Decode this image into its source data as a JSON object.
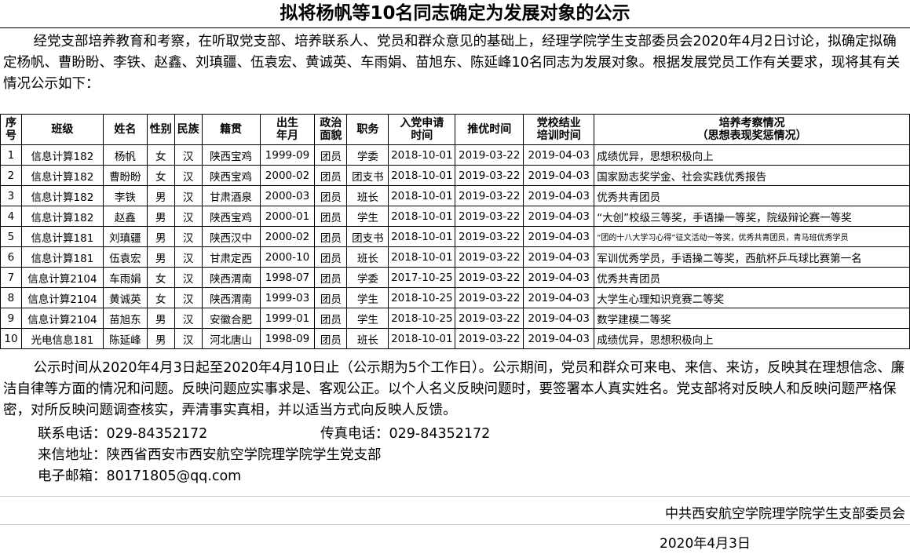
{
  "title": "拟将杨帆等10名同志确定为发展对象的公示",
  "intro": "经党支部培养教育和考察，在听取党支部、培养联系人、党员和群众意见的基础上，经理学院学生支部委员会2020年4月2日讨论，拟确定拟确定杨帆、曹盼盼、李铁、赵鑫、刘瑱疆、伍袁宏、黄诚英、车雨娟、苗旭东、陈延峰10名同志为发展对象。根据发展党员工作有关要求，现将其有关情况公示如下：",
  "table": {
    "headers": [
      "序号",
      "班级",
      "姓名",
      "性别",
      "民族",
      "籍贯",
      "出生\n年月",
      "政治\n面貌",
      "职务",
      "入党申请\n时间",
      "推优时间",
      "党校结业\n培训时间",
      "培养考察情况\n（思想表现奖惩情况）"
    ],
    "rows": [
      [
        "1",
        "信息计算182",
        "杨帆",
        "女",
        "汉",
        "陕西宝鸡",
        "1999-09",
        "团员",
        "学委",
        "2018-10-01",
        "2019-03-22",
        "2019-04-03",
        "成绩优异，思想积极向上"
      ],
      [
        "2",
        "信息计算182",
        "曹盼盼",
        "女",
        "汉",
        "陕西宝鸡",
        "2000-02",
        "团员",
        "团支书",
        "2018-10-01",
        "2019-03-22",
        "2019-04-03",
        "国家励志奖学金、社会实践优秀报告"
      ],
      [
        "3",
        "信息计算182",
        "李铁",
        "男",
        "汉",
        "甘肃酒泉",
        "2000-03",
        "团员",
        "班长",
        "2018-10-01",
        "2019-03-22",
        "2019-04-03",
        "优秀共青团员"
      ],
      [
        "4",
        "信息计算182",
        "赵鑫",
        "男",
        "汉",
        "陕西宝鸡",
        "2000-01",
        "团员",
        "学生",
        "2018-10-01",
        "2019-03-22",
        "2019-04-03",
        "“大创”校级三等奖，手语操一等奖，院级辩论赛一等奖"
      ],
      [
        "5",
        "信息计算181",
        "刘瑱疆",
        "男",
        "汉",
        "陕西汉中",
        "2000-02",
        "团员",
        "团支书",
        "2018-10-01",
        "2019-03-22",
        "2019-04-03",
        "“团的十八大学习心得”征文活动一等奖，优秀共青团员，青马班优秀学员"
      ],
      [
        "6",
        "信息计算181",
        "伍袁宏",
        "男",
        "汉",
        "甘肃定西",
        "2000-10",
        "团员",
        "班长",
        "2018-10-01",
        "2019-03-22",
        "2019-04-03",
        "军训优秀学员，手语操二等奖，西航杯乒乓球比赛第一名"
      ],
      [
        "7",
        "信息计算2104",
        "车雨娟",
        "女",
        "汉",
        "陕西渭南",
        "1998-07",
        "团员",
        "学委",
        "2017-10-25",
        "2019-03-22",
        "2019-04-03",
        "优秀共青团员"
      ],
      [
        "8",
        "信息计算2104",
        "黄诚英",
        "女",
        "汉",
        "陕西渭南",
        "1999-03",
        "团员",
        "学生",
        "2018-10-25",
        "2019-03-22",
        "2019-04-03",
        "大学生心理知识竞赛二等奖"
      ],
      [
        "9",
        "信息计算2104",
        "苗旭东",
        "男",
        "汉",
        "安徽合肥",
        "1999-01",
        "团员",
        "学生",
        "2018-10-25",
        "2019-03-22",
        "2019-04-03",
        "数学建模二等奖"
      ],
      [
        "10",
        "光电信息181",
        "陈延峰",
        "男",
        "汉",
        "河北唐山",
        "1998-09",
        "团员",
        "班长",
        "2018-10-01",
        "2019-03-22",
        "2019-04-03",
        "成绩优异，思想积极向上"
      ]
    ]
  },
  "notice": "公示时间从2020年4月3日起至2020年4月10日止（公示期为5个工作日）。公示期间，党员和群众可来电、来信、来访，反映其在理想信念、廉洁自律等方面的情况和问题。反映问题应实事求是、客观公正。以个人名义反映问题时，要签署本人真实姓名。党支部将对反映人和反映问题严格保密，对所反映问题调查核实，弄清事实真相，并以适当方式向反映人反馈。",
  "contact": {
    "phone": "联系电话：029-84352172",
    "fax": "传真电话：029-84352172",
    "address": "来信地址：陕西省西安市西安航空学院理学院学生党支部",
    "email": "电子邮箱：80171805@qq.com"
  },
  "signature": "中共西安航空学院理学院学生支部委员会",
  "date": "2020年4月3日"
}
